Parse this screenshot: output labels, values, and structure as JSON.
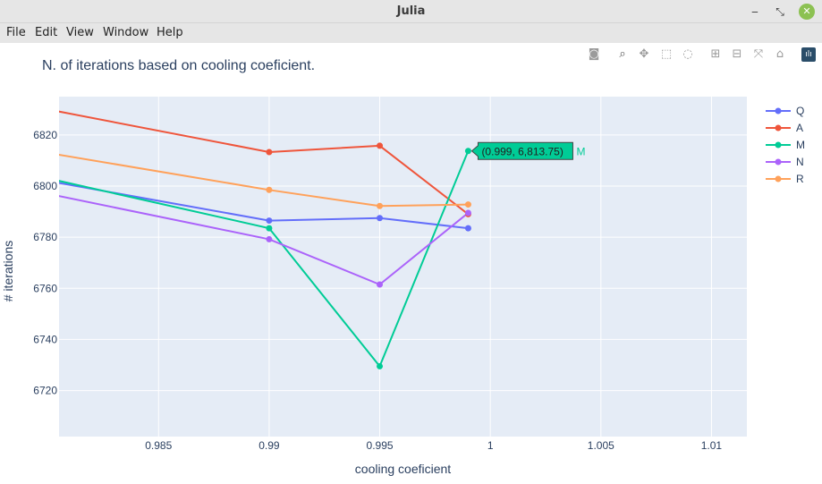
{
  "window": {
    "title": "Julia"
  },
  "menu": [
    "File",
    "Edit",
    "View",
    "Window",
    "Help"
  ],
  "modebar_icons": [
    "camera-icon",
    "zoom-icon",
    "pan-icon",
    "box-select-icon",
    "lasso-icon",
    "zoom-in-icon",
    "zoom-out-icon",
    "autoscale-icon",
    "home-icon",
    "logo-icon"
  ],
  "chart_data": {
    "type": "line",
    "title": "N. of iterations based on cooling coeficient.",
    "xlabel": "cooling coeficient",
    "ylabel": "# iterations",
    "xlim": [
      0.9805,
      1.0116
    ],
    "ylim": [
      6702,
      6835
    ],
    "xticks": [
      0.985,
      0.99,
      0.995,
      1,
      1.005,
      1.01
    ],
    "xtick_labels": [
      "0.985",
      "0.99",
      "0.995",
      "1",
      "1.005",
      "1.01"
    ],
    "yticks": [
      6720,
      6740,
      6760,
      6780,
      6800,
      6820
    ],
    "ytick_labels": [
      "6720",
      "6740",
      "6760",
      "6780",
      "6800",
      "6820"
    ],
    "x": [
      0.98,
      0.99,
      0.995,
      0.999
    ],
    "series": [
      {
        "name": "Q",
        "color": "#636efa",
        "values": [
          6802,
          6786.5,
          6787.5,
          6783.5
        ]
      },
      {
        "name": "A",
        "color": "#ef553b",
        "values": [
          6830,
          6813.3,
          6815.8,
          6789
        ]
      },
      {
        "name": "M",
        "color": "#00cc96",
        "values": [
          6803,
          6783.5,
          6729.5,
          6813.75
        ]
      },
      {
        "name": "N",
        "color": "#ab63fa",
        "values": [
          6797,
          6779.2,
          6761.5,
          6789.5
        ]
      },
      {
        "name": "R",
        "color": "#ffa15a",
        "values": [
          6813,
          6798.5,
          6792.2,
          6792.8
        ]
      }
    ],
    "legend_position": "right",
    "grid": true,
    "hover": {
      "series": "M",
      "text": "(0.999, 6,813.75)",
      "label": "M",
      "x": 0.999,
      "y": 6813.75
    }
  }
}
